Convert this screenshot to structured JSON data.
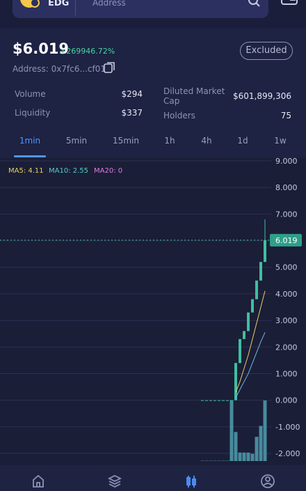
{
  "header": {
    "token": "EDG",
    "search_placeholder": "Address"
  },
  "price": {
    "value": "$6.019",
    "change": "+269946.72%",
    "address": "Address: 0x7fc6...cf01",
    "button": "Excluded"
  },
  "stats": [
    {
      "label": "Volume",
      "value": "$294"
    },
    {
      "label": "Liquidity",
      "value": "$337"
    },
    {
      "label": "Diluted Market Cap",
      "value": "$601,899,306"
    },
    {
      "label": "Holders",
      "value": "75"
    }
  ],
  "timeframes": [
    "1min",
    "5min",
    "15min",
    "1h",
    "4h",
    "1d",
    "1w"
  ],
  "chart_data": {
    "type": "candlestick",
    "ma_labels": [
      {
        "text": "MA5: 4.11",
        "color": "#e8cf6a"
      },
      {
        "text": "MA10: 2.55",
        "color": "#4fd1c5"
      },
      {
        "text": "MA20: 0",
        "color": "#e07be0"
      }
    ],
    "ylim": [
      -2.4,
      9.1
    ],
    "yticks": [
      {
        "value": 9,
        "label": "9.000"
      },
      {
        "value": 8,
        "label": "8.000"
      },
      {
        "value": 7,
        "label": "7.000"
      },
      {
        "value": 6,
        "label": "6.000"
      },
      {
        "value": 5,
        "label": "5.000"
      },
      {
        "value": 4,
        "label": "4.000"
      },
      {
        "value": 3,
        "label": "3.000"
      },
      {
        "value": 2,
        "label": "2.000"
      },
      {
        "value": 1,
        "label": "1.000"
      },
      {
        "value": 0,
        "label": "0.000"
      },
      {
        "value": -1,
        "label": "-1.000"
      },
      {
        "value": -2,
        "label": "-2.000"
      }
    ],
    "grid": true,
    "last_price": {
      "value": 6.019,
      "label": "6.019"
    },
    "color": "#3fbf9f",
    "candles": [
      {
        "open": 0,
        "high": 0,
        "low": 0,
        "close": 0
      },
      {
        "open": 0,
        "high": 0,
        "low": 0,
        "close": 0
      },
      {
        "open": 0,
        "high": 0,
        "low": 0,
        "close": 0
      },
      {
        "open": 0,
        "high": 0,
        "low": 0,
        "close": 0
      },
      {
        "open": 0,
        "high": 0,
        "low": 0,
        "close": 0
      },
      {
        "open": 0,
        "high": 0,
        "low": 0,
        "close": 0
      },
      {
        "open": 0,
        "high": 0,
        "low": 0,
        "close": 0
      },
      {
        "open": 0,
        "high": 0,
        "low": 0,
        "close": 0
      },
      {
        "open": 0,
        "high": 1.4,
        "low": 0,
        "close": 1.4
      },
      {
        "open": 1.4,
        "high": 2.3,
        "low": 1.4,
        "close": 2.3
      },
      {
        "open": 2.3,
        "high": 2.6,
        "low": 2.3,
        "close": 2.6
      },
      {
        "open": 2.6,
        "high": 3.3,
        "low": 2.6,
        "close": 3.3
      },
      {
        "open": 3.3,
        "high": 3.8,
        "low": 3.3,
        "close": 3.8
      },
      {
        "open": 3.8,
        "high": 4.5,
        "low": 3.8,
        "close": 4.5
      },
      {
        "open": 4.5,
        "high": 5.2,
        "low": 4.5,
        "close": 5.2
      },
      {
        "open": 5.2,
        "high": 6.8,
        "low": 5.2,
        "close": 6.019
      }
    ],
    "ma5": [
      null,
      null,
      null,
      null,
      null,
      null,
      null,
      null,
      0.3,
      0.7,
      1.2,
      1.7,
      2.3,
      2.9,
      3.5,
      4.11
    ],
    "ma10": [
      null,
      null,
      null,
      null,
      null,
      null,
      null,
      null,
      0.1,
      0.4,
      0.7,
      1.0,
      1.4,
      1.8,
      2.2,
      2.55
    ],
    "volume_color": "#4f9fb0",
    "volume_lim": [
      0,
      100
    ],
    "volumes": [
      0,
      0,
      0,
      0,
      0,
      0,
      0,
      100,
      48,
      14,
      14,
      14,
      12,
      40,
      58,
      100
    ]
  }
}
